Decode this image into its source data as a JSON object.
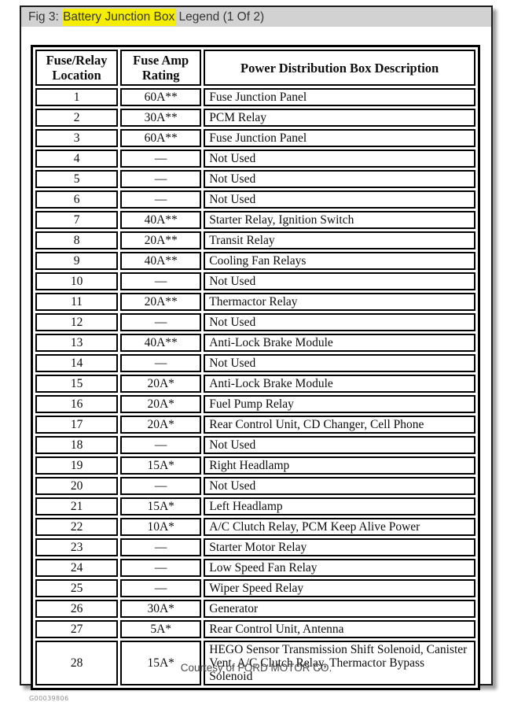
{
  "window": {
    "title_prefix": "Fig 3: ",
    "title_highlight": "Battery Junction Box",
    "title_suffix": " Legend (1 Of 2)"
  },
  "table": {
    "headers": [
      "Fuse/Relay\nLocation",
      "Fuse Amp\nRating",
      "Power Distribution Box Description"
    ],
    "rows": [
      {
        "location": "1",
        "rating": "60A**",
        "description": "Fuse Junction Panel"
      },
      {
        "location": "2",
        "rating": "30A**",
        "description": "PCM Relay"
      },
      {
        "location": "3",
        "rating": "60A**",
        "description": "Fuse Junction Panel"
      },
      {
        "location": "4",
        "rating": "—",
        "description": "Not Used"
      },
      {
        "location": "5",
        "rating": "—",
        "description": "Not Used"
      },
      {
        "location": "6",
        "rating": "—",
        "description": "Not Used"
      },
      {
        "location": "7",
        "rating": "40A**",
        "description": "Starter Relay, Ignition Switch"
      },
      {
        "location": "8",
        "rating": "20A**",
        "description": "Transit Relay"
      },
      {
        "location": "9",
        "rating": "40A**",
        "description": "Cooling Fan Relays"
      },
      {
        "location": "10",
        "rating": "—",
        "description": "Not Used"
      },
      {
        "location": "11",
        "rating": "20A**",
        "description": "Thermactor Relay"
      },
      {
        "location": "12",
        "rating": "—",
        "description": "Not Used"
      },
      {
        "location": "13",
        "rating": "40A**",
        "description": "Anti-Lock Brake Module"
      },
      {
        "location": "14",
        "rating": "—",
        "description": "Not Used"
      },
      {
        "location": "15",
        "rating": "20A*",
        "description": "Anti-Lock Brake Module"
      },
      {
        "location": "16",
        "rating": "20A*",
        "description": "Fuel Pump Relay"
      },
      {
        "location": "17",
        "rating": "20A*",
        "description": "Rear Control Unit, CD Changer, Cell Phone"
      },
      {
        "location": "18",
        "rating": "—",
        "description": "Not Used"
      },
      {
        "location": "19",
        "rating": "15A*",
        "description": "Right Headlamp"
      },
      {
        "location": "20",
        "rating": "—",
        "description": "Not Used"
      },
      {
        "location": "21",
        "rating": "15A*",
        "description": "Left Headlamp"
      },
      {
        "location": "22",
        "rating": "10A*",
        "description": "A/C Clutch Relay, PCM Keep Alive Power"
      },
      {
        "location": "23",
        "rating": "—",
        "description": "Starter Motor Relay"
      },
      {
        "location": "24",
        "rating": "—",
        "description": "Low Speed Fan Relay"
      },
      {
        "location": "25",
        "rating": "—",
        "description": "Wiper Speed Relay"
      },
      {
        "location": "26",
        "rating": "30A*",
        "description": "Generator"
      },
      {
        "location": "27",
        "rating": "5A*",
        "description": "Rear Control Unit, Antenna"
      },
      {
        "location": "28",
        "rating": "15A*",
        "description": "HEGO Sensor Transmission Shift Solenoid, Canister Vent, A/C Clutch Relay, Thermactor Bypass Solenoid"
      }
    ]
  },
  "footer": {
    "graphic_id": "G00039806",
    "courtesy": "Courtesy of FORD MOTOR CO."
  },
  "colors": {
    "titlebar_bg": "#d2d2d2",
    "highlight": "#f5ee00",
    "panel_border": "#1c1c1c"
  }
}
